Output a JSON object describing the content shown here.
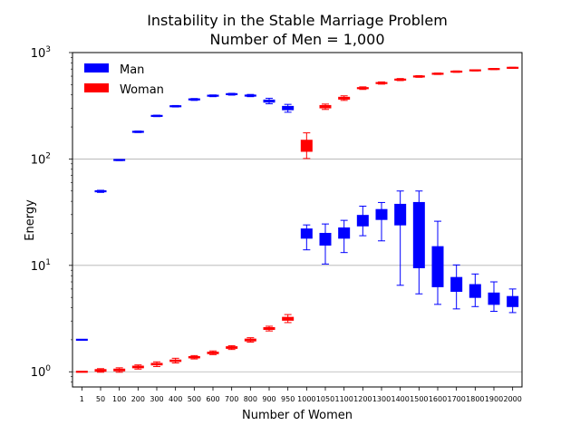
{
  "chart_data": {
    "type": "boxplot",
    "title": "Instability in the Stable Marriage Problem",
    "subtitle": "Number of Men = 1,000",
    "xlabel": "Number of Women",
    "ylabel": "Energy",
    "yscale": "log",
    "ylim": [
      0.72,
      1000
    ],
    "grid": "y-major",
    "legend": {
      "position": "top-left",
      "entries": [
        {
          "name": "Man",
          "color": "#0000ff"
        },
        {
          "name": "Woman",
          "color": "#ff0000"
        }
      ]
    },
    "yticks": [
      {
        "value": 1,
        "base": "10",
        "exp": "0"
      },
      {
        "value": 10,
        "base": "10",
        "exp": "1"
      },
      {
        "value": 100,
        "base": "10",
        "exp": "2"
      },
      {
        "value": 1000,
        "base": "10",
        "exp": "3"
      }
    ],
    "categories": [
      "1",
      "50",
      "100",
      "200",
      "300",
      "400",
      "500",
      "600",
      "700",
      "800",
      "900",
      "950",
      "1000",
      "1050",
      "1100",
      "1200",
      "1300",
      "1400",
      "1500",
      "1600",
      "1700",
      "1800",
      "1900",
      "2000"
    ],
    "series": [
      {
        "name": "Man",
        "color": "#0000ff",
        "boxes": [
          {
            "category": "1",
            "whislo": 1.99,
            "q1": 1.99,
            "med": 2.0,
            "q3": 2.01,
            "whishi": 2.01
          },
          {
            "category": "50",
            "whislo": 48.5,
            "q1": 49.2,
            "med": 49.7,
            "q3": 50.2,
            "whishi": 50.8
          },
          {
            "category": "100",
            "whislo": 96.5,
            "q1": 97.3,
            "med": 97.8,
            "q3": 98.3,
            "whishi": 99
          },
          {
            "category": "200",
            "whislo": 177,
            "q1": 179,
            "med": 180,
            "q3": 181,
            "whishi": 183
          },
          {
            "category": "300",
            "whislo": 250,
            "q1": 252,
            "med": 254,
            "q3": 256,
            "whishi": 258
          },
          {
            "category": "400",
            "whislo": 308,
            "q1": 311,
            "med": 313,
            "q3": 315,
            "whishi": 318
          },
          {
            "category": "500",
            "whislo": 355,
            "q1": 360,
            "med": 363,
            "q3": 366,
            "whishi": 370
          },
          {
            "category": "600",
            "whislo": 385,
            "q1": 390,
            "med": 393,
            "q3": 396,
            "whishi": 400
          },
          {
            "category": "700",
            "whislo": 398,
            "q1": 403,
            "med": 406,
            "q3": 410,
            "whishi": 414
          },
          {
            "category": "800",
            "whislo": 385,
            "q1": 390,
            "med": 394,
            "q3": 398,
            "whishi": 404
          },
          {
            "category": "900",
            "whislo": 330,
            "q1": 342,
            "med": 350,
            "q3": 358,
            "whishi": 372
          },
          {
            "category": "950",
            "whislo": 275,
            "q1": 290,
            "med": 302,
            "q3": 312,
            "whishi": 326
          },
          {
            "category": "1000",
            "whislo": 14.0,
            "q1": 18.0,
            "med": 20.0,
            "q3": 22.0,
            "whishi": 24.0
          },
          {
            "category": "1050",
            "whislo": 10.3,
            "q1": 15.5,
            "med": 17.5,
            "q3": 20.0,
            "whishi": 24.5
          },
          {
            "category": "1100",
            "whislo": 13.2,
            "q1": 18.0,
            "med": 20.5,
            "q3": 22.5,
            "whishi": 26.5
          },
          {
            "category": "1200",
            "whislo": 19.0,
            "q1": 23.5,
            "med": 26.5,
            "q3": 29.5,
            "whishi": 36.0
          },
          {
            "category": "1300",
            "whislo": 17.0,
            "q1": 27.0,
            "med": 30.0,
            "q3": 33.5,
            "whishi": 39.0
          },
          {
            "category": "1400",
            "whislo": 6.5,
            "q1": 24.0,
            "med": 30.0,
            "q3": 37.5,
            "whishi": 50.0
          },
          {
            "category": "1500",
            "whislo": 5.4,
            "q1": 9.5,
            "med": 24.0,
            "q3": 39.0,
            "whishi": 50.0
          },
          {
            "category": "1600",
            "whislo": 4.3,
            "q1": 6.3,
            "med": 9.0,
            "q3": 15.0,
            "whishi": 26.0
          },
          {
            "category": "1700",
            "whislo": 3.9,
            "q1": 5.7,
            "med": 6.8,
            "q3": 7.7,
            "whishi": 10.1
          },
          {
            "category": "1800",
            "whislo": 4.1,
            "q1": 5.0,
            "med": 5.6,
            "q3": 6.6,
            "whishi": 8.3
          },
          {
            "category": "1900",
            "whislo": 3.7,
            "q1": 4.3,
            "med": 4.8,
            "q3": 5.5,
            "whishi": 7.0
          },
          {
            "category": "2000",
            "whislo": 3.6,
            "q1": 4.1,
            "med": 4.5,
            "q3": 5.1,
            "whishi": 6.0
          }
        ]
      },
      {
        "name": "Woman",
        "color": "#ff0000",
        "boxes": [
          {
            "category": "1",
            "whislo": 0.995,
            "q1": 0.998,
            "med": 1.0,
            "q3": 1.002,
            "whishi": 1.005
          },
          {
            "category": "50",
            "whislo": 0.99,
            "q1": 1.01,
            "med": 1.03,
            "q3": 1.05,
            "whishi": 1.07
          },
          {
            "category": "100",
            "whislo": 0.99,
            "q1": 1.02,
            "med": 1.04,
            "q3": 1.06,
            "whishi": 1.09
          },
          {
            "category": "200",
            "whislo": 1.06,
            "q1": 1.09,
            "med": 1.11,
            "q3": 1.13,
            "whishi": 1.16
          },
          {
            "category": "300",
            "whislo": 1.12,
            "q1": 1.16,
            "med": 1.18,
            "q3": 1.2,
            "whishi": 1.24
          },
          {
            "category": "400",
            "whislo": 1.21,
            "q1": 1.25,
            "med": 1.27,
            "q3": 1.29,
            "whishi": 1.34
          },
          {
            "category": "500",
            "whislo": 1.32,
            "q1": 1.35,
            "med": 1.37,
            "q3": 1.39,
            "whishi": 1.42
          },
          {
            "category": "600",
            "whislo": 1.45,
            "q1": 1.48,
            "med": 1.5,
            "q3": 1.53,
            "whishi": 1.57
          },
          {
            "category": "700",
            "whislo": 1.62,
            "q1": 1.66,
            "med": 1.69,
            "q3": 1.72,
            "whishi": 1.76
          },
          {
            "category": "800",
            "whislo": 1.9,
            "q1": 1.95,
            "med": 1.99,
            "q3": 2.03,
            "whishi": 2.09
          },
          {
            "category": "900",
            "whislo": 2.42,
            "q1": 2.5,
            "med": 2.55,
            "q3": 2.6,
            "whishi": 2.68
          },
          {
            "category": "950",
            "whislo": 2.9,
            "q1": 3.05,
            "med": 3.15,
            "q3": 3.25,
            "whishi": 3.45
          },
          {
            "category": "1000",
            "whislo": 101,
            "q1": 118,
            "med": 135,
            "q3": 150,
            "whishi": 176
          },
          {
            "category": "1050",
            "whislo": 292,
            "q1": 302,
            "med": 310,
            "q3": 318,
            "whishi": 328
          },
          {
            "category": "1100",
            "whislo": 355,
            "q1": 365,
            "med": 372,
            "q3": 380,
            "whishi": 392
          },
          {
            "category": "1200",
            "whislo": 450,
            "q1": 458,
            "med": 463,
            "q3": 468,
            "whishi": 476
          },
          {
            "category": "1300",
            "whislo": 505,
            "q1": 512,
            "med": 517,
            "q3": 522,
            "whishi": 530
          },
          {
            "category": "1400",
            "whislo": 545,
            "q1": 552,
            "med": 557,
            "q3": 562,
            "whishi": 570
          },
          {
            "category": "1500",
            "whislo": 585,
            "q1": 592,
            "med": 596,
            "q3": 600,
            "whishi": 607
          },
          {
            "category": "1600",
            "whislo": 622,
            "q1": 628,
            "med": 632,
            "q3": 636,
            "whishi": 642
          },
          {
            "category": "1700",
            "whislo": 652,
            "q1": 658,
            "med": 662,
            "q3": 666,
            "whishi": 672
          },
          {
            "category": "1800",
            "whislo": 672,
            "q1": 677,
            "med": 680,
            "q3": 684,
            "whishi": 689
          },
          {
            "category": "1900",
            "whislo": 692,
            "q1": 697,
            "med": 700,
            "q3": 703,
            "whishi": 708
          },
          {
            "category": "2000",
            "whislo": 712,
            "q1": 716,
            "med": 719,
            "q3": 722,
            "whishi": 727
          }
        ]
      }
    ]
  }
}
